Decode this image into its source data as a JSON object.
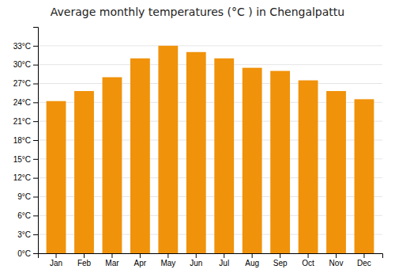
{
  "chart_data": {
    "type": "bar",
    "title": "Average monthly temperatures (°C ) in Chengalpattu",
    "categories": [
      "Jan",
      "Feb",
      "Mar",
      "Apr",
      "May",
      "Jun",
      "Jul",
      "Aug",
      "Sep",
      "Oct",
      "Nov",
      "Dec"
    ],
    "values": [
      24.2,
      25.8,
      28.0,
      31.0,
      33.0,
      32.0,
      31.0,
      29.5,
      29.0,
      27.5,
      25.8,
      24.5
    ],
    "color": "#F0920A",
    "ylim": [
      0,
      36
    ],
    "yticks": [
      {
        "value": 0,
        "label": "0°C"
      },
      {
        "value": 3,
        "label": "3°C"
      },
      {
        "value": 6,
        "label": "6°C"
      },
      {
        "value": 9,
        "label": "9°C"
      },
      {
        "value": 12,
        "label": "12°C"
      },
      {
        "value": 15,
        "label": "15°C"
      },
      {
        "value": 18,
        "label": "18°C"
      },
      {
        "value": 21,
        "label": "21°C"
      },
      {
        "value": 24,
        "label": "24°C"
      },
      {
        "value": 27,
        "label": "27°C"
      },
      {
        "value": 30,
        "label": "30°C"
      },
      {
        "value": 33,
        "label": "33°C"
      }
    ],
    "grid": true
  }
}
